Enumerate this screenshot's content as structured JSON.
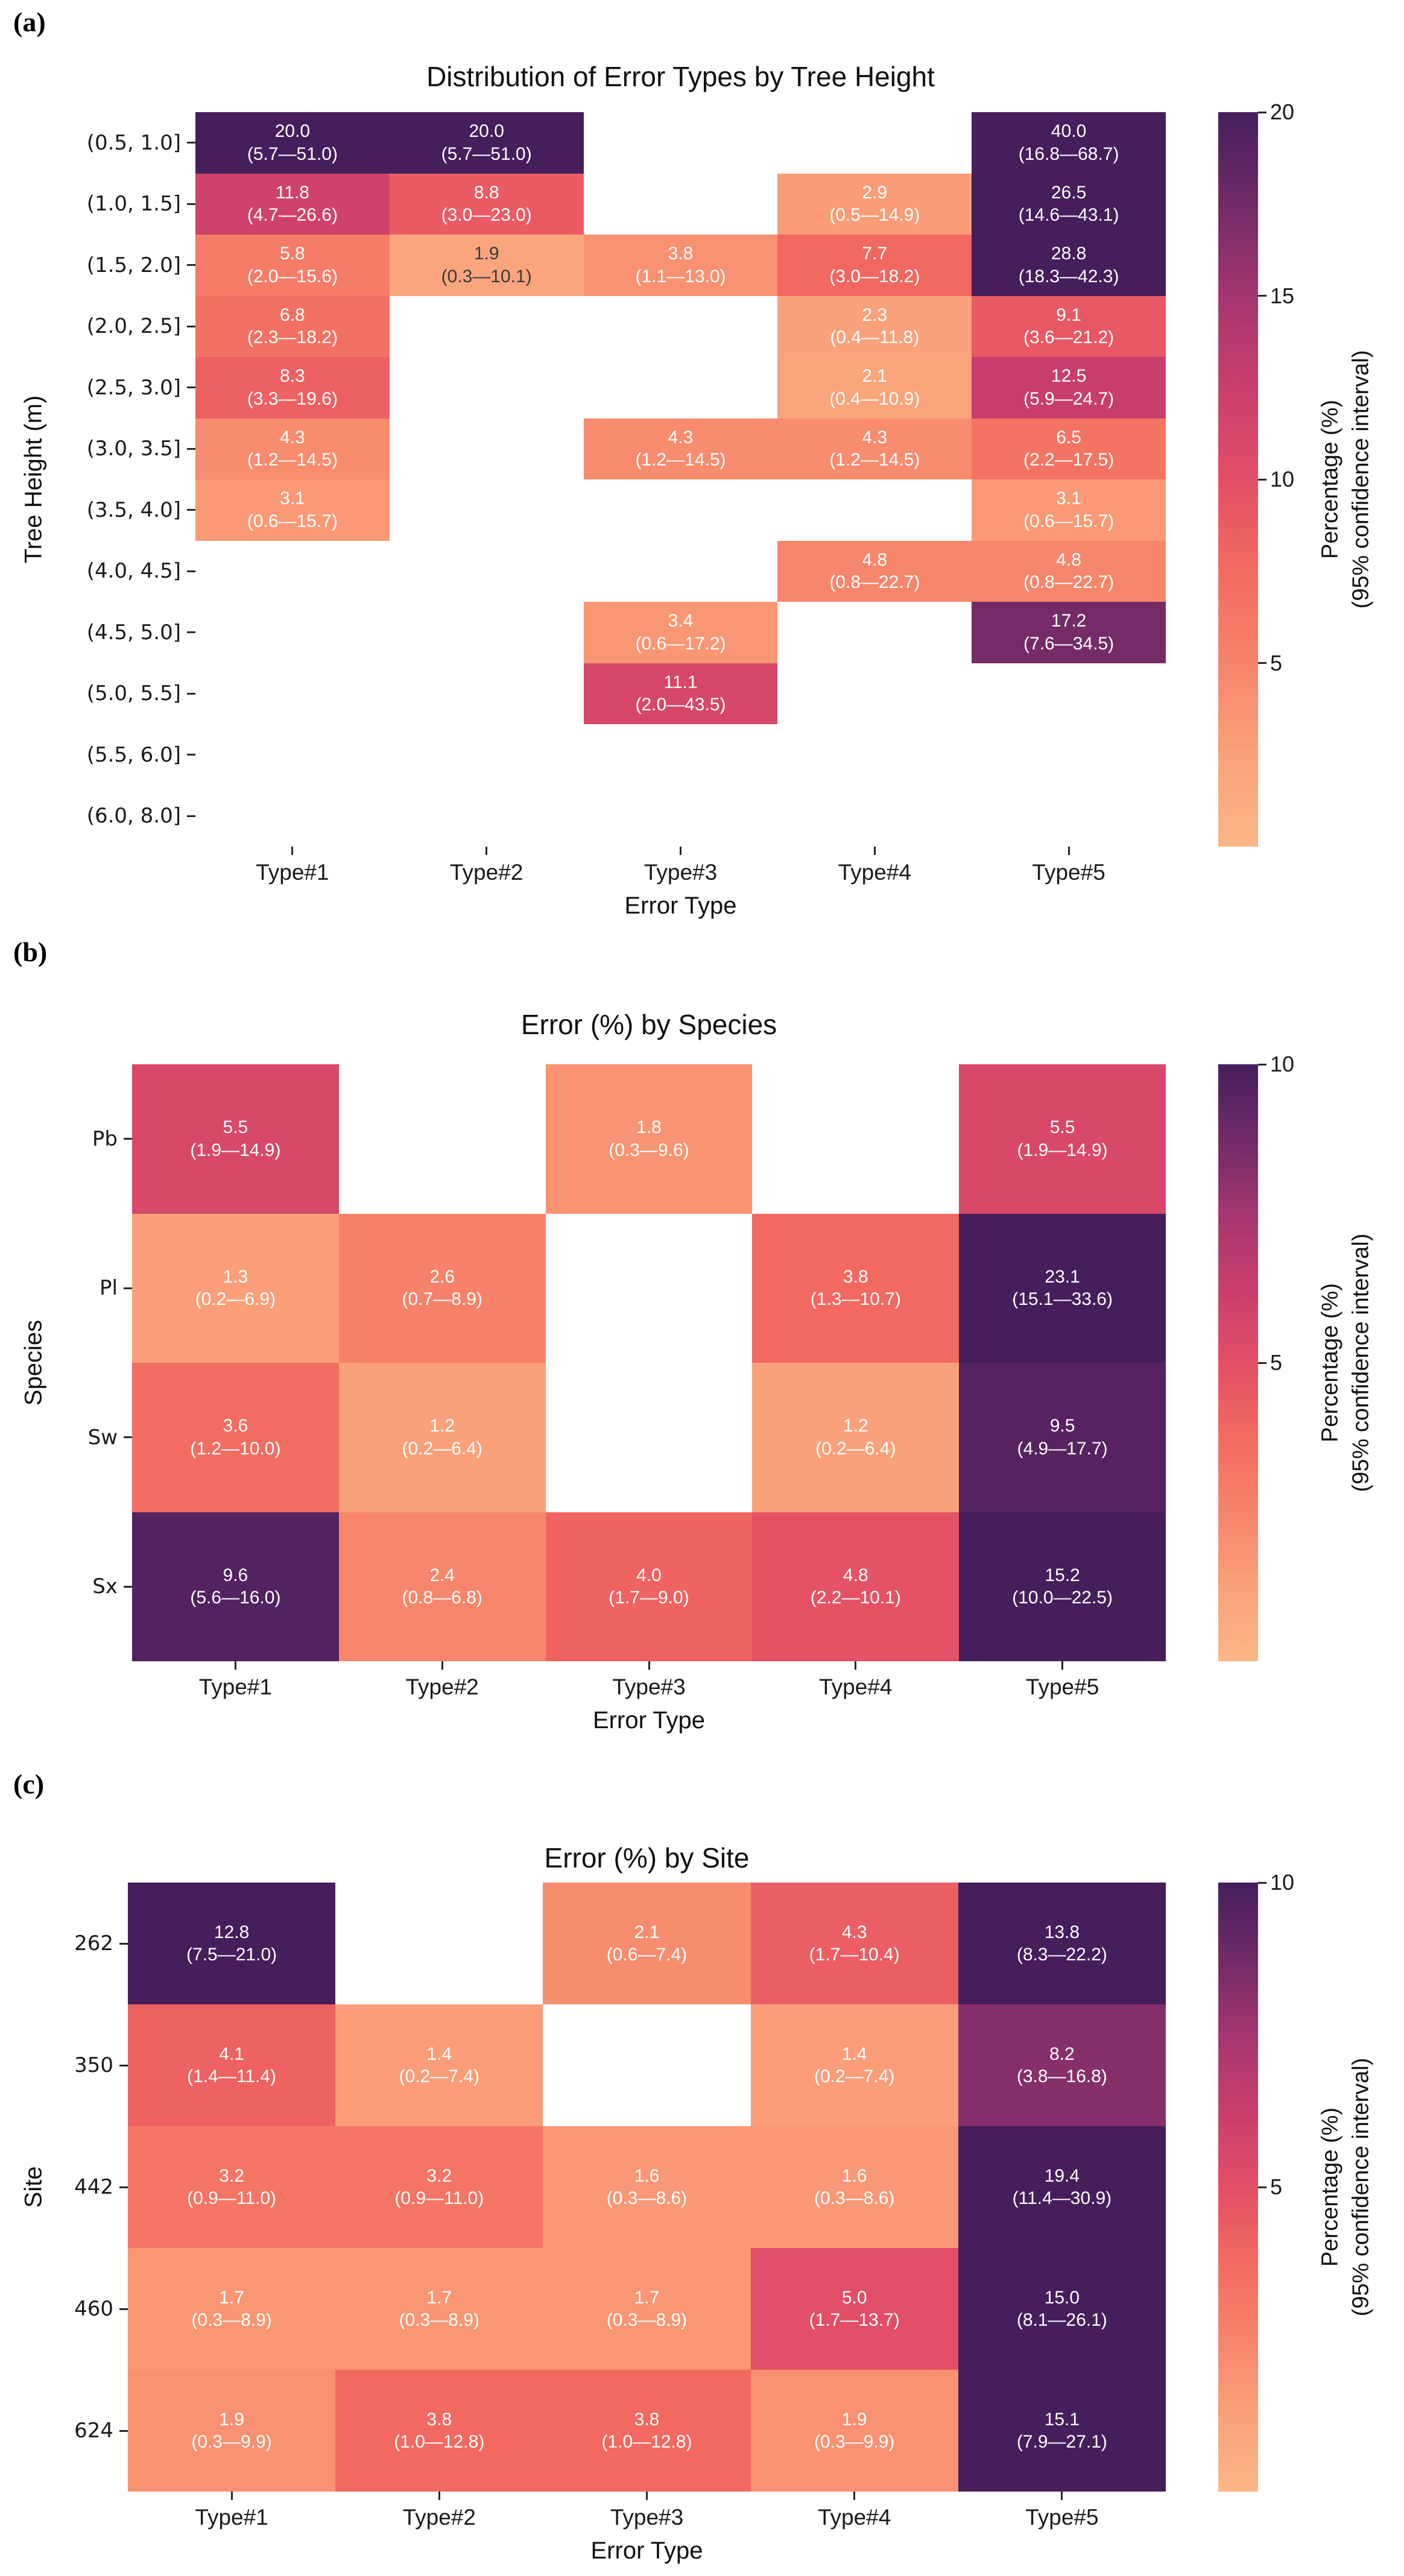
{
  "palette": {
    "colormap_name": "flare",
    "stops": [
      [
        0.0,
        "#fbb687"
      ],
      [
        0.125,
        "#faa07a"
      ],
      [
        0.25,
        "#f6846a"
      ],
      [
        0.375,
        "#f26a60"
      ],
      [
        0.5,
        "#e24e67"
      ],
      [
        0.625,
        "#c73e6c"
      ],
      [
        0.75,
        "#a4366f"
      ],
      [
        0.875,
        "#6e2a67"
      ],
      [
        1.0,
        "#461e5c"
      ]
    ],
    "light_text_color": "#ffffff",
    "dark_text_color": "#3a3a3a",
    "background": "#ffffff"
  },
  "chart_data": [
    {
      "type": "heatmap",
      "panel": "(a)",
      "title": "Distribution of Error Types by Tree Height",
      "xlabel": "Error Type",
      "ylabel": "Tree Height (m)",
      "columns": [
        "Type#1",
        "Type#2",
        "Type#3",
        "Type#4",
        "Type#5"
      ],
      "rows": [
        "(0.5, 1.0]",
        "(1.0, 1.5]",
        "(1.5, 2.0]",
        "(2.0, 2.5]",
        "(2.5, 3.0]",
        "(3.0, 3.5]",
        "(3.5, 4.0]",
        "(4.0, 4.5]",
        "(4.5, 5.0]",
        "(5.0, 5.5]",
        "(5.5, 6.0]",
        "(6.0, 8.0]"
      ],
      "vmin": 0,
      "vmax": 20,
      "values": [
        [
          20.0,
          20.0,
          null,
          null,
          40.0
        ],
        [
          11.8,
          8.8,
          null,
          2.9,
          26.5
        ],
        [
          5.8,
          1.9,
          3.8,
          7.7,
          28.8
        ],
        [
          6.8,
          null,
          null,
          2.3,
          9.1
        ],
        [
          8.3,
          null,
          null,
          2.1,
          12.5
        ],
        [
          4.3,
          null,
          4.3,
          4.3,
          6.5
        ],
        [
          3.1,
          null,
          null,
          null,
          3.1
        ],
        [
          null,
          null,
          null,
          4.8,
          4.8
        ],
        [
          null,
          null,
          3.4,
          null,
          17.2
        ],
        [
          null,
          null,
          11.1,
          null,
          null
        ],
        [
          null,
          null,
          null,
          null,
          null
        ],
        [
          null,
          null,
          null,
          null,
          null
        ]
      ],
      "ci": [
        [
          "(5.7—51.0)",
          "(5.7—51.0)",
          null,
          null,
          "(16.8—68.7)"
        ],
        [
          "(4.7—26.6)",
          "(3.0—23.0)",
          null,
          "(0.5—14.9)",
          "(14.6—43.1)"
        ],
        [
          "(2.0—15.6)",
          "(0.3—10.1)",
          "(1.1—13.0)",
          "(3.0—18.2)",
          "(18.3—42.3)"
        ],
        [
          "(2.3—18.2)",
          null,
          null,
          "(0.4—11.8)",
          "(3.6—21.2)"
        ],
        [
          "(3.3—19.6)",
          null,
          null,
          "(0.4—10.9)",
          "(5.9—24.7)"
        ],
        [
          "(1.2—14.5)",
          null,
          "(1.2—14.5)",
          "(1.2—14.5)",
          "(2.2—17.5)"
        ],
        [
          "(0.6—15.7)",
          null,
          null,
          null,
          "(0.6—15.7)"
        ],
        [
          null,
          null,
          null,
          "(0.8—22.7)",
          "(0.8—22.7)"
        ],
        [
          null,
          null,
          "(0.6—17.2)",
          null,
          "(7.6—34.5)"
        ],
        [
          null,
          null,
          "(2.0—43.5)",
          null,
          null
        ],
        [
          null,
          null,
          null,
          null,
          null
        ],
        [
          null,
          null,
          null,
          null,
          null
        ]
      ],
      "colorbar": {
        "ticks": [
          20,
          15,
          10,
          5
        ],
        "label_line1": "Percentage (%)",
        "label_line2": "(95% confidence interval)"
      }
    },
    {
      "type": "heatmap",
      "panel": "(b)",
      "title": "Error (%) by Species",
      "xlabel": "Error Type",
      "ylabel": "Species",
      "columns": [
        "Type#1",
        "Type#2",
        "Type#3",
        "Type#4",
        "Type#5"
      ],
      "rows": [
        "Pb",
        "Pl",
        "Sw",
        "Sx"
      ],
      "vmin": 0,
      "vmax": 10,
      "values": [
        [
          5.5,
          null,
          1.8,
          null,
          5.5
        ],
        [
          1.3,
          2.6,
          null,
          3.8,
          23.1
        ],
        [
          3.6,
          1.2,
          null,
          1.2,
          9.5
        ],
        [
          9.6,
          2.4,
          4.0,
          4.8,
          15.2
        ]
      ],
      "ci": [
        [
          "(1.9—14.9)",
          null,
          "(0.3—9.6)",
          null,
          "(1.9—14.9)"
        ],
        [
          "(0.2—6.9)",
          "(0.7—8.9)",
          null,
          "(1.3—10.7)",
          "(15.1—33.6)"
        ],
        [
          "(1.2—10.0)",
          "(0.2—6.4)",
          null,
          "(0.2—6.4)",
          "(4.9—17.7)"
        ],
        [
          "(5.6—16.0)",
          "(0.8—6.8)",
          "(1.7—9.0)",
          "(2.2—10.1)",
          "(10.0—22.5)"
        ]
      ],
      "colorbar": {
        "ticks": [
          10,
          5
        ],
        "label_line1": "Percentage (%)",
        "label_line2": "(95% confidence interval)"
      }
    },
    {
      "type": "heatmap",
      "panel": "(c)",
      "title": "Error (%) by Site",
      "xlabel": "Error Type",
      "ylabel": "Site",
      "columns": [
        "Type#1",
        "Type#2",
        "Type#3",
        "Type#4",
        "Type#5"
      ],
      "rows": [
        "262",
        "350",
        "442",
        "460",
        "624"
      ],
      "vmin": 0,
      "vmax": 10,
      "values": [
        [
          12.8,
          null,
          2.1,
          4.3,
          13.8
        ],
        [
          4.1,
          1.4,
          null,
          1.4,
          8.2
        ],
        [
          3.2,
          3.2,
          1.6,
          1.6,
          19.4
        ],
        [
          1.7,
          1.7,
          1.7,
          5.0,
          15.0
        ],
        [
          1.9,
          3.8,
          3.8,
          1.9,
          15.1
        ]
      ],
      "ci": [
        [
          "(7.5—21.0)",
          null,
          "(0.6—7.4)",
          "(1.7—10.4)",
          "(8.3—22.2)"
        ],
        [
          "(1.4—11.4)",
          "(0.2—7.4)",
          null,
          "(0.2—7.4)",
          "(3.8—16.8)"
        ],
        [
          "(0.9—11.0)",
          "(0.9—11.0)",
          "(0.3—8.6)",
          "(0.3—8.6)",
          "(11.4—30.9)"
        ],
        [
          "(0.3—8.9)",
          "(0.3—8.9)",
          "(0.3—8.9)",
          "(1.7—13.7)",
          "(8.1—26.1)"
        ],
        [
          "(0.3—9.9)",
          "(1.0—12.8)",
          "(1.0—12.8)",
          "(0.3—9.9)",
          "(7.9—27.1)"
        ]
      ],
      "colorbar": {
        "ticks": [
          10,
          5
        ],
        "label_line1": "Percentage (%)",
        "label_line2": "(95% confidence interval)"
      }
    }
  ]
}
